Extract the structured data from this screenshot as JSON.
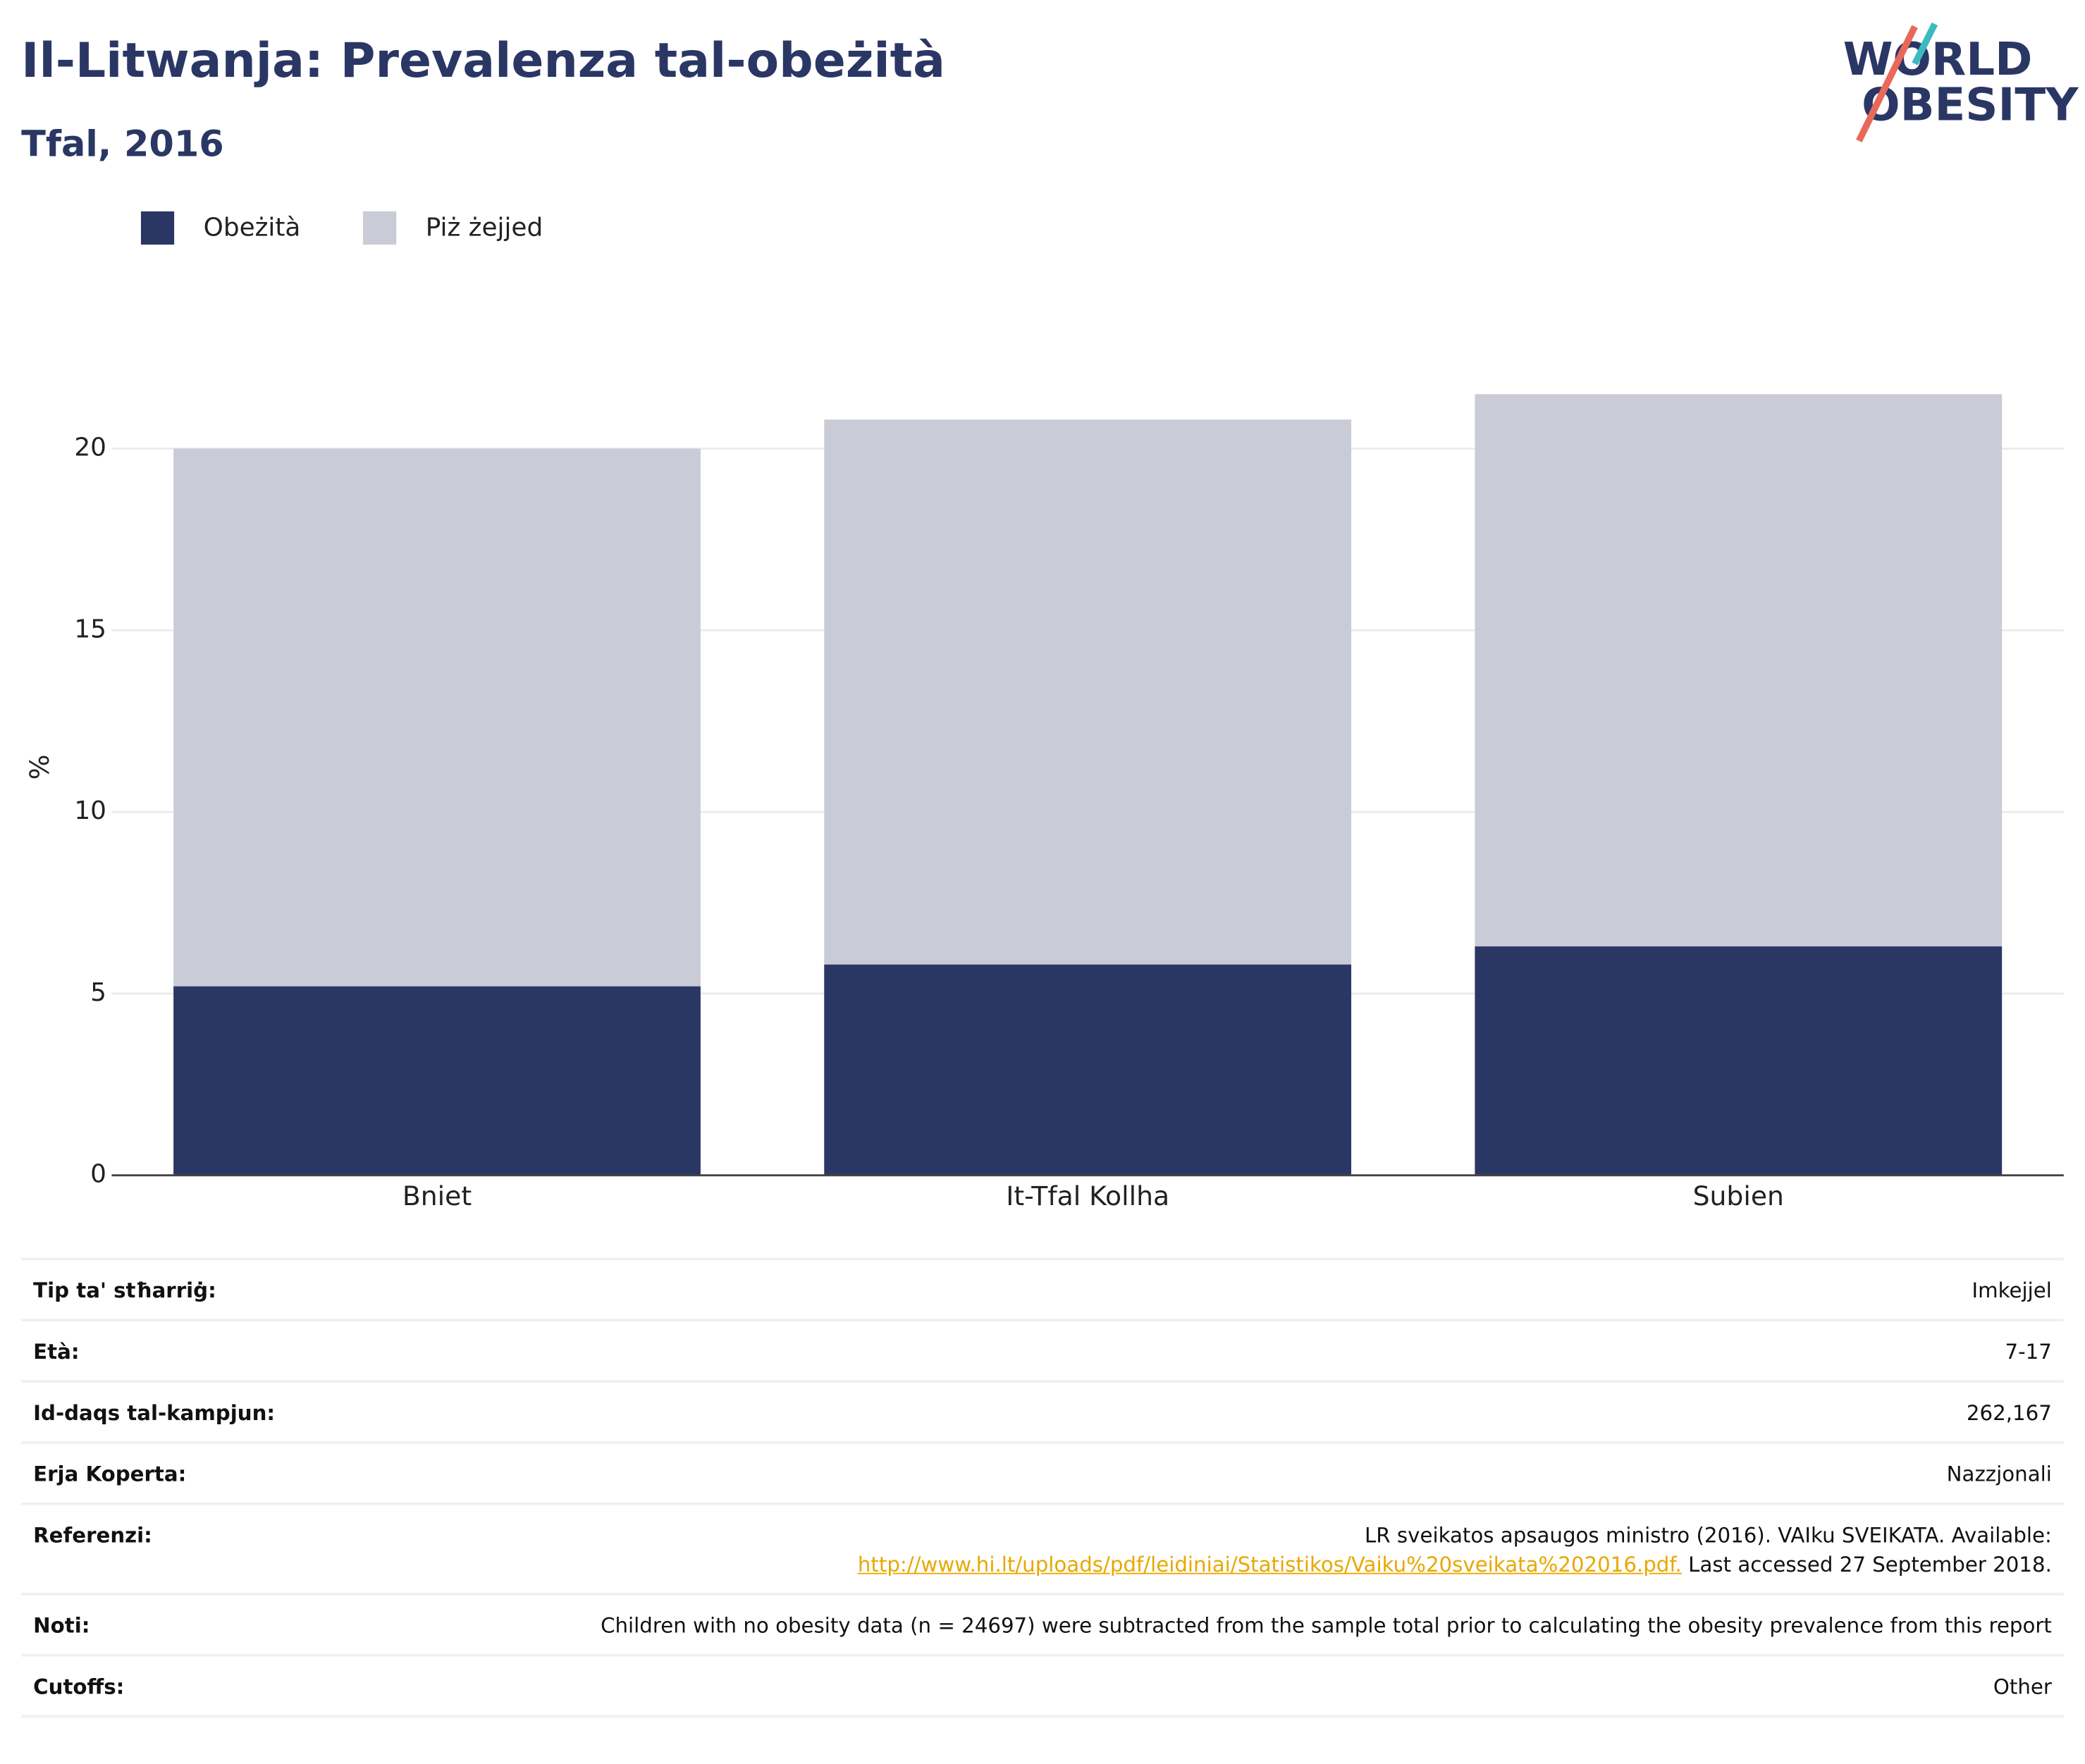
{
  "logo": {
    "line1": "WORLD",
    "line2": "OBESITY"
  },
  "chart_data": {
    "type": "bar",
    "barmode": "overlay",
    "title": "Il-Litwanja: Prevalenza tal-obeżità",
    "subtitle": "Tfal, 2016",
    "y_label": "%",
    "categories": [
      "Bniet",
      "It-Tfal Kollha",
      "Subien"
    ],
    "series": [
      {
        "name": "Obeżità",
        "color": "#2a3765",
        "values": [
          5.2,
          5.8,
          6.3
        ]
      },
      {
        "name": "Piż żejjed",
        "color": "#c9cbd7",
        "values": [
          20.0,
          20.8,
          21.5
        ]
      }
    ],
    "ylim": [
      0,
      23.2
    ],
    "yticks": [
      0,
      5,
      10,
      15,
      20
    ],
    "grid": true
  },
  "table": {
    "rows": [
      {
        "label": "Tip ta' stħarriġ:",
        "value": "Imkejjel"
      },
      {
        "label": "Età:",
        "value": "7-17"
      },
      {
        "label": "Id-daqs tal-kampjun:",
        "value": "262,167"
      },
      {
        "label": "Erja Koperta:",
        "value": "Nazzjonali"
      },
      {
        "label": "Referenzi:",
        "value": "LR sveikatos apsaugos ministro (2016). VAIku SVEIKATA. Available:",
        "link": "http://www.hi.lt/uploads/pdf/leidiniai/Statistikos/Vaiku%20sveikata%202016.pdf.",
        "after": "Last accessed 27 September 2018."
      },
      {
        "label": "Noti:",
        "value": "Children with no obesity data (n = 24697) were subtracted from the sample total prior to calculating the obesity prevalence from this report"
      },
      {
        "label": "Cutoffs:",
        "value": "Other"
      }
    ]
  }
}
